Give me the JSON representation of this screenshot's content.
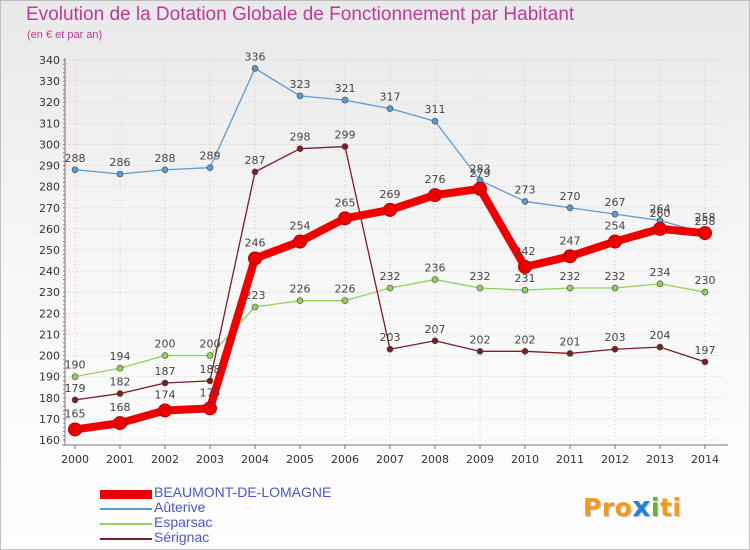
{
  "header": {
    "title": "Evolution de la Dotation Globale de Fonctionnement par Habitant",
    "subtitle": "(en € et par an)"
  },
  "logo": {
    "part1": "Pro",
    "part2": "x",
    "part3": "i",
    "part4": "ti"
  },
  "chart_data": {
    "type": "line",
    "title": "Evolution de la Dotation Globale de Fonctionnement par Habitant",
    "subtitle": "(en € et par an)",
    "xlabel": "",
    "ylabel": "",
    "ylim": [
      160,
      340
    ],
    "yticks": [
      160,
      170,
      180,
      190,
      200,
      210,
      220,
      230,
      240,
      250,
      260,
      270,
      280,
      290,
      300,
      310,
      320,
      330,
      340
    ],
    "grid": true,
    "legend_position": "bottom-left",
    "x": [
      "2000",
      "2001",
      "2002",
      "2003",
      "2004",
      "2005",
      "2006",
      "2007",
      "2008",
      "2009",
      "2010",
      "2011",
      "2012",
      "2013",
      "2014"
    ],
    "series": [
      {
        "name": "Aûterive",
        "color": "#5b9bd5",
        "values": [
          288,
          286,
          288,
          289,
          336,
          323,
          321,
          317,
          311,
          283,
          273,
          270,
          267,
          264,
          258
        ]
      },
      {
        "name": "Esparsac",
        "color": "#8fd15a",
        "values": [
          190,
          194,
          200,
          200,
          223,
          226,
          226,
          232,
          236,
          232,
          231,
          232,
          232,
          234,
          230
        ]
      },
      {
        "name": "Sérignac",
        "color": "#7a1f24",
        "values": [
          179,
          182,
          187,
          188,
          287,
          298,
          299,
          203,
          207,
          202,
          202,
          201,
          203,
          204,
          197
        ]
      },
      {
        "name": "BEAUMONT-DE-LOMAGNE",
        "color": "#ee0000",
        "values": [
          165,
          168,
          174,
          175,
          246,
          254,
          265,
          269,
          276,
          279,
          242,
          247,
          254,
          260,
          258
        ]
      }
    ]
  }
}
